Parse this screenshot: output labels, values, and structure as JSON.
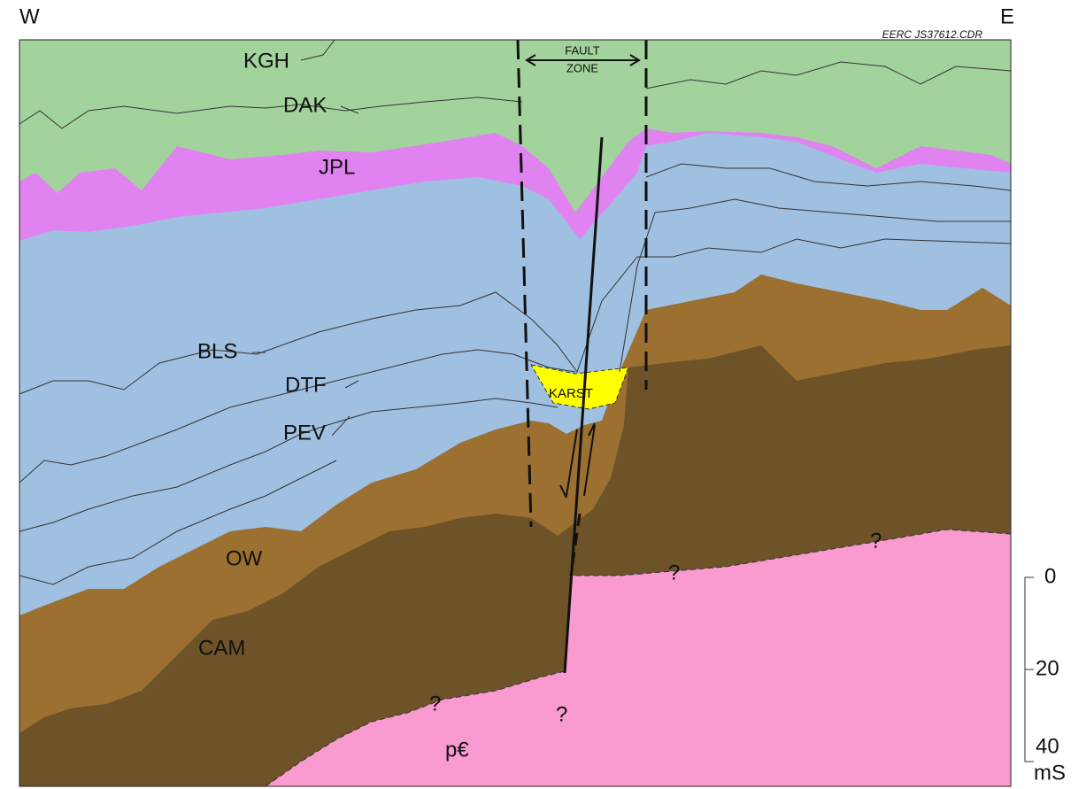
{
  "header": {
    "west": "W",
    "east": "E",
    "code": "EERC JS37612.CDR"
  },
  "fault_zone": [
    "FAULT",
    "ZONE"
  ],
  "units": {
    "kgh": "KGH",
    "dak": "DAK",
    "jpl": "JPL",
    "bls": "BLS",
    "dtf": "DTF",
    "pev": "PEV",
    "ow": "OW",
    "cam": "CAM",
    "karst": "KARST",
    "precambrian": "p€"
  },
  "unknown": "?",
  "scale": {
    "ticks": [
      "0",
      "20",
      "40"
    ],
    "unit": "mS"
  }
}
